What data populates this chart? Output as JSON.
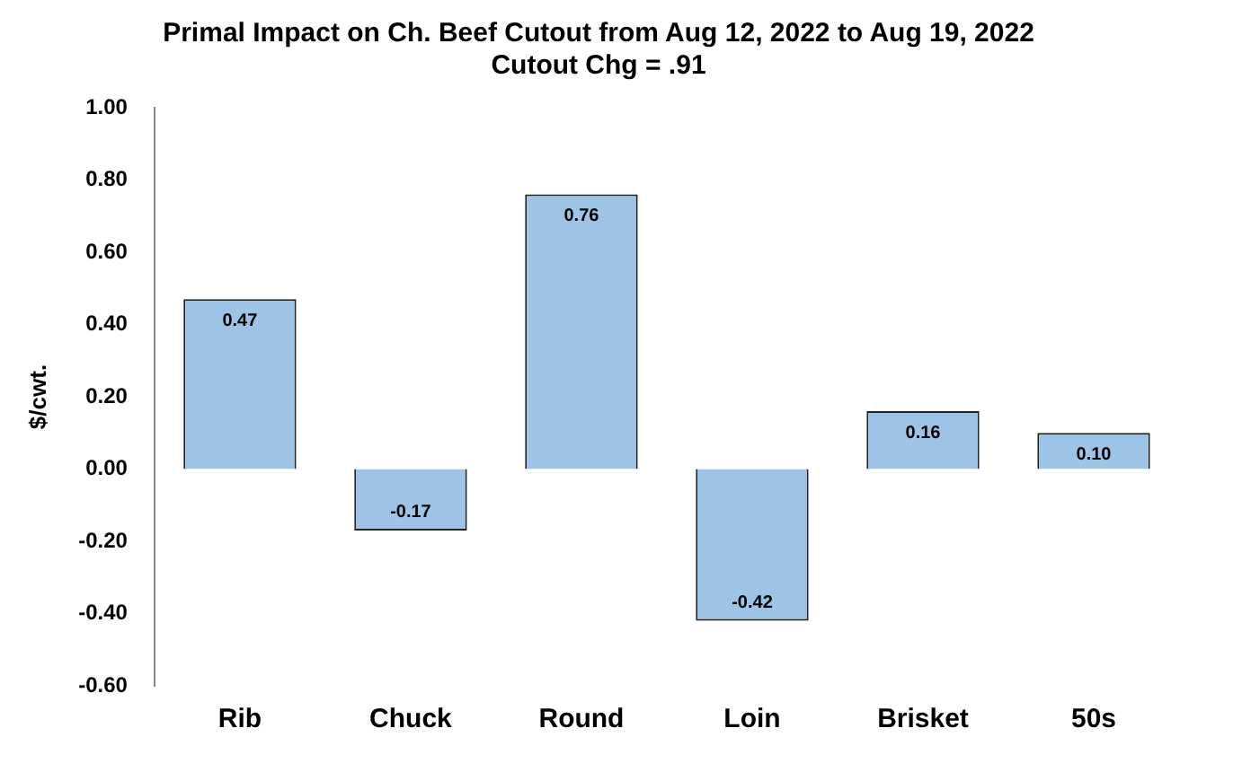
{
  "chart_data": {
    "type": "bar",
    "title": "Primal Impact on Ch. Beef Cutout from Aug 12, 2022 to Aug 19, 2022",
    "subtitle": "Cutout Chg = .91",
    "ylabel": "$/cwt.",
    "categories": [
      "Rib",
      "Chuck",
      "Round",
      "Loin",
      "Brisket",
      "50s"
    ],
    "values": [
      0.47,
      -0.17,
      0.76,
      -0.42,
      0.16,
      0.1
    ],
    "value_labels": [
      "0.47",
      "-0.17",
      "0.76",
      "-0.42",
      "0.16",
      "0.10"
    ],
    "color": "#9dc3e6",
    "ylim": [
      -0.6,
      1.0
    ],
    "yticks": [
      {
        "value": -0.6,
        "label": "-0.60"
      },
      {
        "value": -0.4,
        "label": "-0.40"
      },
      {
        "value": -0.2,
        "label": "-0.20"
      },
      {
        "value": 0,
        "label": "0.00"
      },
      {
        "value": 0.2,
        "label": "0.20"
      },
      {
        "value": 0.4,
        "label": "0.40"
      },
      {
        "value": 0.6,
        "label": "0.60"
      },
      {
        "value": 0.8,
        "label": "0.80"
      },
      {
        "value": 1.0,
        "label": "1.00"
      }
    ],
    "grid": false,
    "legend": false
  }
}
